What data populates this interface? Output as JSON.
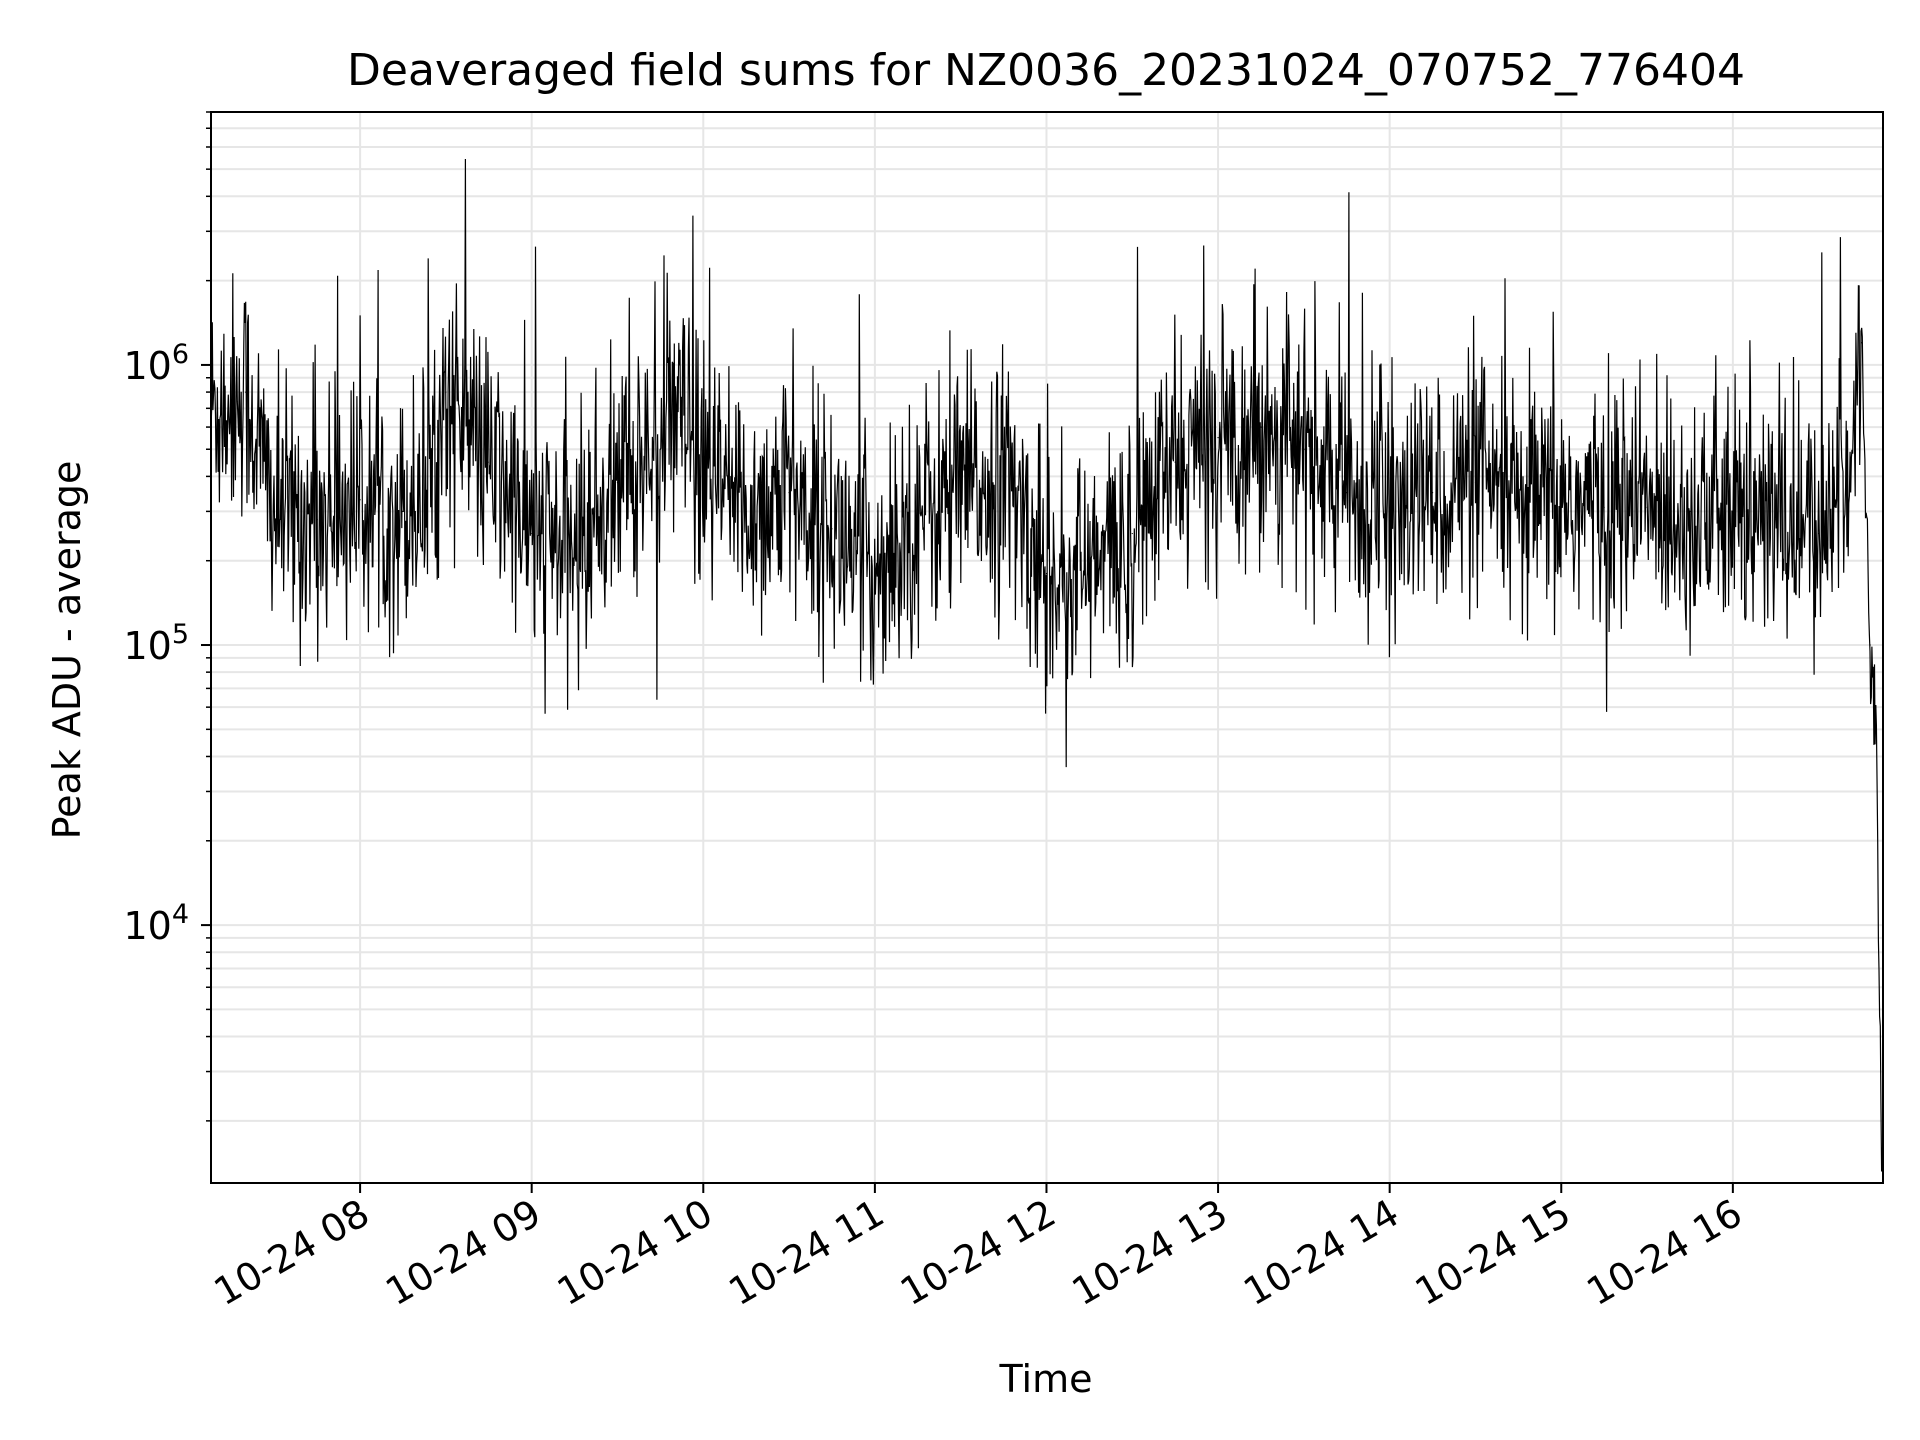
{
  "chart_data": {
    "type": "line",
    "title": "Deaveraged field sums for NZ0036_20231024_070752_776404",
    "xlabel": "Time",
    "ylabel": "Peak ADU - average",
    "yscale": "log",
    "ylim": [
      1200,
      8000000
    ],
    "xlim": [
      "2023-10-24 07:07:52",
      "2023-10-24 16:52:30"
    ],
    "grid": true,
    "line_color": "#000000",
    "grid_color": "#e6e6e6",
    "x_ticks": [
      "10-24 08",
      "10-24 09",
      "10-24 10",
      "10-24 11",
      "10-24 12",
      "10-24 13",
      "10-24 14",
      "10-24 15",
      "10-24 16"
    ],
    "y_ticks": [
      {
        "base": "10",
        "exp": "4",
        "value": 10000
      },
      {
        "base": "10",
        "exp": "5",
        "value": 100000
      },
      {
        "base": "10",
        "exp": "6",
        "value": 1000000
      }
    ],
    "series": [
      {
        "x": [
          "2023-10-24 07:08",
          "2023-10-24 07:20",
          "2023-10-24 07:30",
          "2023-10-24 07:45",
          "2023-10-24 08:00",
          "2023-10-24 08:15",
          "2023-10-24 08:25",
          "2023-10-24 08:30",
          "2023-10-24 08:45",
          "2023-10-24 09:00",
          "2023-10-24 09:15",
          "2023-10-24 09:30",
          "2023-10-24 09:45",
          "2023-10-24 09:52",
          "2023-10-24 10:00",
          "2023-10-24 10:15",
          "2023-10-24 10:30",
          "2023-10-24 10:45",
          "2023-10-24 11:00",
          "2023-10-24 11:15",
          "2023-10-24 11:30",
          "2023-10-24 11:45",
          "2023-10-24 12:00",
          "2023-10-24 12:15",
          "2023-10-24 12:30",
          "2023-10-24 12:45",
          "2023-10-24 13:00",
          "2023-10-24 13:15",
          "2023-10-24 13:30",
          "2023-10-24 13:45",
          "2023-10-24 14:00",
          "2023-10-24 14:15",
          "2023-10-24 14:30",
          "2023-10-24 14:45",
          "2023-10-24 15:00",
          "2023-10-24 15:15",
          "2023-10-24 15:30",
          "2023-10-24 15:45",
          "2023-10-24 16:00",
          "2023-10-24 16:15",
          "2023-10-24 16:30",
          "2023-10-24 16:40",
          "2023-10-24 16:45",
          "2023-10-24 16:48",
          "2023-10-24 16:50",
          "2023-10-24 16:52"
        ],
        "y": [
          700000,
          800000,
          300000,
          280000,
          330000,
          300000,
          380000,
          800000,
          450000,
          250000,
          220000,
          380000,
          500000,
          650000,
          400000,
          300000,
          350000,
          260000,
          180000,
          300000,
          350000,
          400000,
          180000,
          180000,
          250000,
          450000,
          550000,
          600000,
          500000,
          350000,
          280000,
          350000,
          380000,
          300000,
          320000,
          310000,
          310000,
          300000,
          280000,
          280000,
          250000,
          400000,
          1200000,
          100000,
          60000,
          1600
        ]
      }
    ]
  }
}
